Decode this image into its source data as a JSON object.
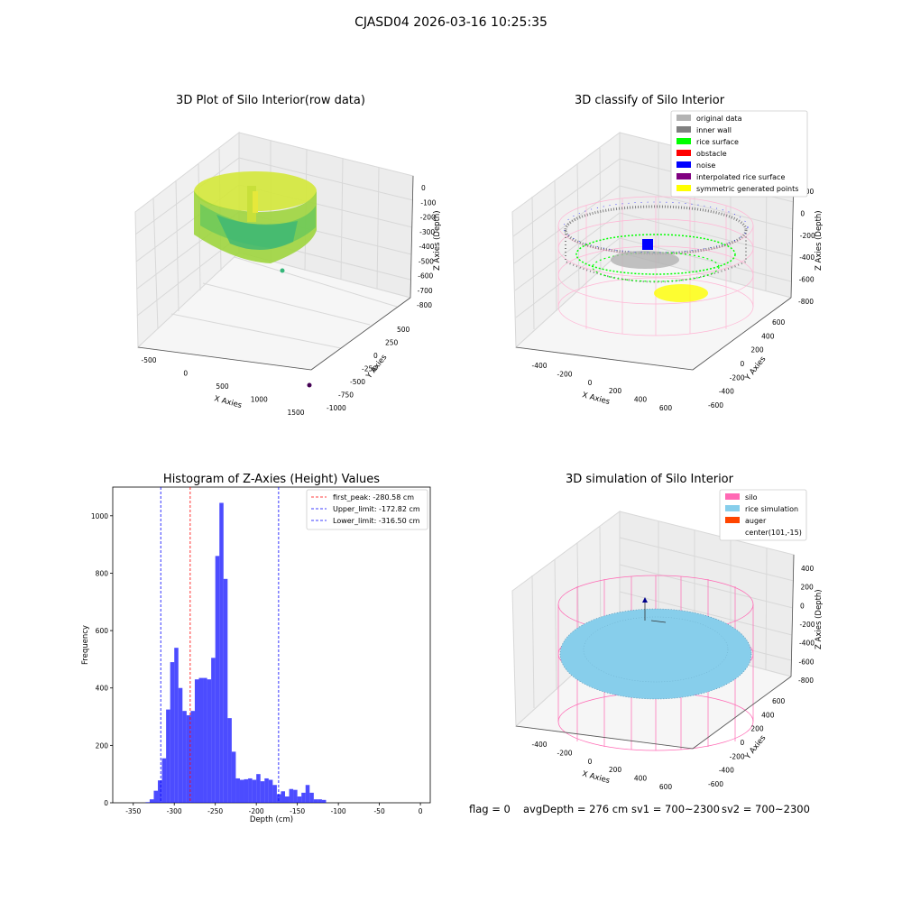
{
  "figure": {
    "suptitle": "CJASD04 2026-03-16 10:25:35",
    "footer": {
      "flag": "flag = 0",
      "avg_depth": "avgDepth = 276 cm",
      "sv1": "sv1 = 700~2300",
      "sv2": "sv2 = 700~2300"
    }
  },
  "panels": {
    "raw": {
      "title": "3D Plot of Silo Interior(row data)",
      "xlabel": "X Axies",
      "ylabel": "Y Axies",
      "zlabel": "Z Axies (Depth)",
      "x_ticks": [
        "-500",
        "0",
        "500",
        "1000",
        "1500"
      ],
      "y_ticks": [
        "500",
        "250",
        "0",
        "-250",
        "-500",
        "-750",
        "-1000"
      ],
      "z_ticks": [
        "0",
        "-100",
        "-200",
        "-300",
        "-400",
        "-500",
        "-600",
        "-700",
        "-800"
      ]
    },
    "classify": {
      "title": "3D classify of Silo Interior",
      "xlabel": "X Axies",
      "ylabel": "Y Axies",
      "zlabel": "Z Axies (Depth)",
      "x_ticks": [
        "-400",
        "-200",
        "0",
        "200",
        "400",
        "600"
      ],
      "y_ticks": [
        "600",
        "400",
        "200",
        "0",
        "-200",
        "-400",
        "-600"
      ],
      "z_ticks": [
        "200",
        "0",
        "-200",
        "-400",
        "-600",
        "-800"
      ],
      "z_ticks_visible": [
        "200",
        "0",
        "-200",
        "-400",
        "-600",
        "-800"
      ],
      "legend": [
        {
          "label": "original data",
          "color": "#b3b3b3"
        },
        {
          "label": "inner wall",
          "color": "#808080"
        },
        {
          "label": "rice surface",
          "color": "#00ff00"
        },
        {
          "label": "obstacle",
          "color": "#ff0000"
        },
        {
          "label": "noise",
          "color": "#0000ff"
        },
        {
          "label": "interpolated rice surface",
          "color": "#800080"
        },
        {
          "label": "symmetric generated points",
          "color": "#ffff00"
        }
      ]
    },
    "simulation": {
      "title": "3D simulation of Silo Interior",
      "xlabel": "X Axies",
      "ylabel": "Y Axies",
      "zlabel": "Z Axies (Depth)",
      "x_ticks": [
        "-400",
        "-200",
        "0",
        "200",
        "400",
        "600"
      ],
      "y_ticks": [
        "600",
        "400",
        "200",
        "0",
        "-200",
        "-400",
        "-600"
      ],
      "z_ticks": [
        "400",
        "200",
        "0",
        "-200",
        "-400",
        "-600",
        "-800"
      ],
      "legend": [
        {
          "label": "silo",
          "color": "#ff69b4"
        },
        {
          "label": "rice simulation",
          "color": "#87ceeb"
        },
        {
          "label": "auger",
          "color": "#ff4500"
        },
        {
          "label": "center(101,-15)",
          "color": ""
        }
      ]
    }
  },
  "chart_data": {
    "type": "bar",
    "title": "Histogram of Z-Axies (Height) Values",
    "xlabel": "Depth (cm)",
    "ylabel": "Frequency",
    "xlim": [
      -375,
      12
    ],
    "ylim": [
      0,
      1100
    ],
    "x_ticks": [
      -350,
      -300,
      -250,
      -200,
      -150,
      -100,
      -50,
      0
    ],
    "y_ticks": [
      0,
      200,
      400,
      600,
      800,
      1000
    ],
    "bar_color": "#0000ff",
    "bin_edges_start": -335,
    "bin_width": 5,
    "values": [
      2,
      12,
      42,
      78,
      155,
      325,
      490,
      540,
      400,
      320,
      305,
      320,
      430,
      435,
      435,
      430,
      505,
      860,
      1045,
      780,
      295,
      178,
      85,
      80,
      82,
      85,
      80,
      100,
      75,
      85,
      80,
      62,
      30,
      40,
      22,
      48,
      45,
      22,
      35,
      62,
      35,
      12,
      12,
      10
    ],
    "vlines": [
      {
        "label": "first_peak: -280.58 cm",
        "x": -280.58,
        "color": "#ff0000"
      },
      {
        "label": "Upper_limit: -172.82 cm",
        "x": -172.82,
        "color": "#0000ff"
      },
      {
        "label": "Lower_limit: -316.50 cm",
        "x": -316.5,
        "color": "#0000ff"
      }
    ],
    "legend_position": "top-right"
  }
}
